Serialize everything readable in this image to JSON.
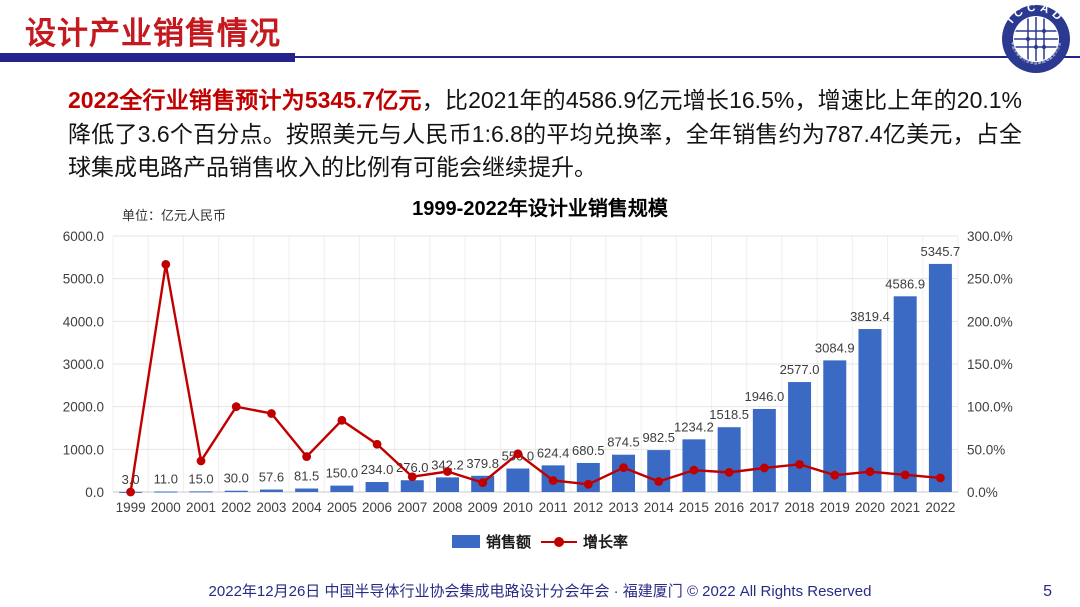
{
  "header": {
    "title": "设计产业销售情况",
    "logo": {
      "text": "ICCAD",
      "ring_text": "中国半导体行业协会集成电路设计分会"
    }
  },
  "intro": {
    "highlight": "2022全行业销售预计为5345.7亿元",
    "body": "，比2021年的4586.9亿元增长16.5%，增速比上年的20.1%降低了3.6个百分点。按照美元与人民币1:6.8的平均兑换率，全年销售约为787.4亿美元，占全球集成电路产品销售收入的比例有可能会继续提升。"
  },
  "chart_data": {
    "type": "bar",
    "combo": "bar+line",
    "title": "1999-2022年设计业销售规模",
    "unit_label": "单位：亿元人民币",
    "categories": [
      "1999",
      "2000",
      "2001",
      "2002",
      "2003",
      "2004",
      "2005",
      "2006",
      "2007",
      "2008",
      "2009",
      "2010",
      "2011",
      "2012",
      "2013",
      "2014",
      "2015",
      "2016",
      "2017",
      "2018",
      "2019",
      "2020",
      "2021",
      "2022"
    ],
    "series": [
      {
        "name": "销售额",
        "kind": "bar",
        "axis": "left",
        "color": "#3B6AC5",
        "values": [
          3.0,
          11.0,
          15.0,
          30.0,
          57.6,
          81.5,
          150.0,
          234.0,
          276.0,
          342.2,
          379.8,
          550.0,
          624.4,
          680.5,
          874.5,
          982.5,
          1234.2,
          1518.5,
          1946.0,
          2577.0,
          3084.9,
          3819.4,
          4586.9,
          5345.7
        ]
      },
      {
        "name": "增长率",
        "kind": "line",
        "axis": "right",
        "color": "#C00000",
        "values": [
          0.0,
          266.7,
          36.4,
          100.0,
          92.0,
          41.5,
          84.0,
          56.0,
          17.9,
          24.0,
          11.0,
          44.8,
          13.5,
          9.0,
          28.5,
          12.3,
          25.6,
          23.0,
          28.2,
          32.4,
          19.7,
          23.8,
          20.1,
          16.5
        ]
      }
    ],
    "left_axis": {
      "min": 0,
      "max": 6000,
      "step": 1000
    },
    "right_axis": {
      "min": 0,
      "max": 300,
      "step": 50,
      "suffix": "%"
    },
    "legend_position": "bottom",
    "grid": true
  },
  "footer": {
    "text": "2022年12月26日 中国半导体行业协会集成电路设计分会年会 · 福建厦门 © 2022 All Rights Reserved",
    "page": "5"
  },
  "colors": {
    "header_red": "#C4191E",
    "accent_red": "#C00000",
    "navy": "#23238E",
    "bar_blue": "#3B6AC5",
    "footer_blue": "#2A2A86"
  }
}
